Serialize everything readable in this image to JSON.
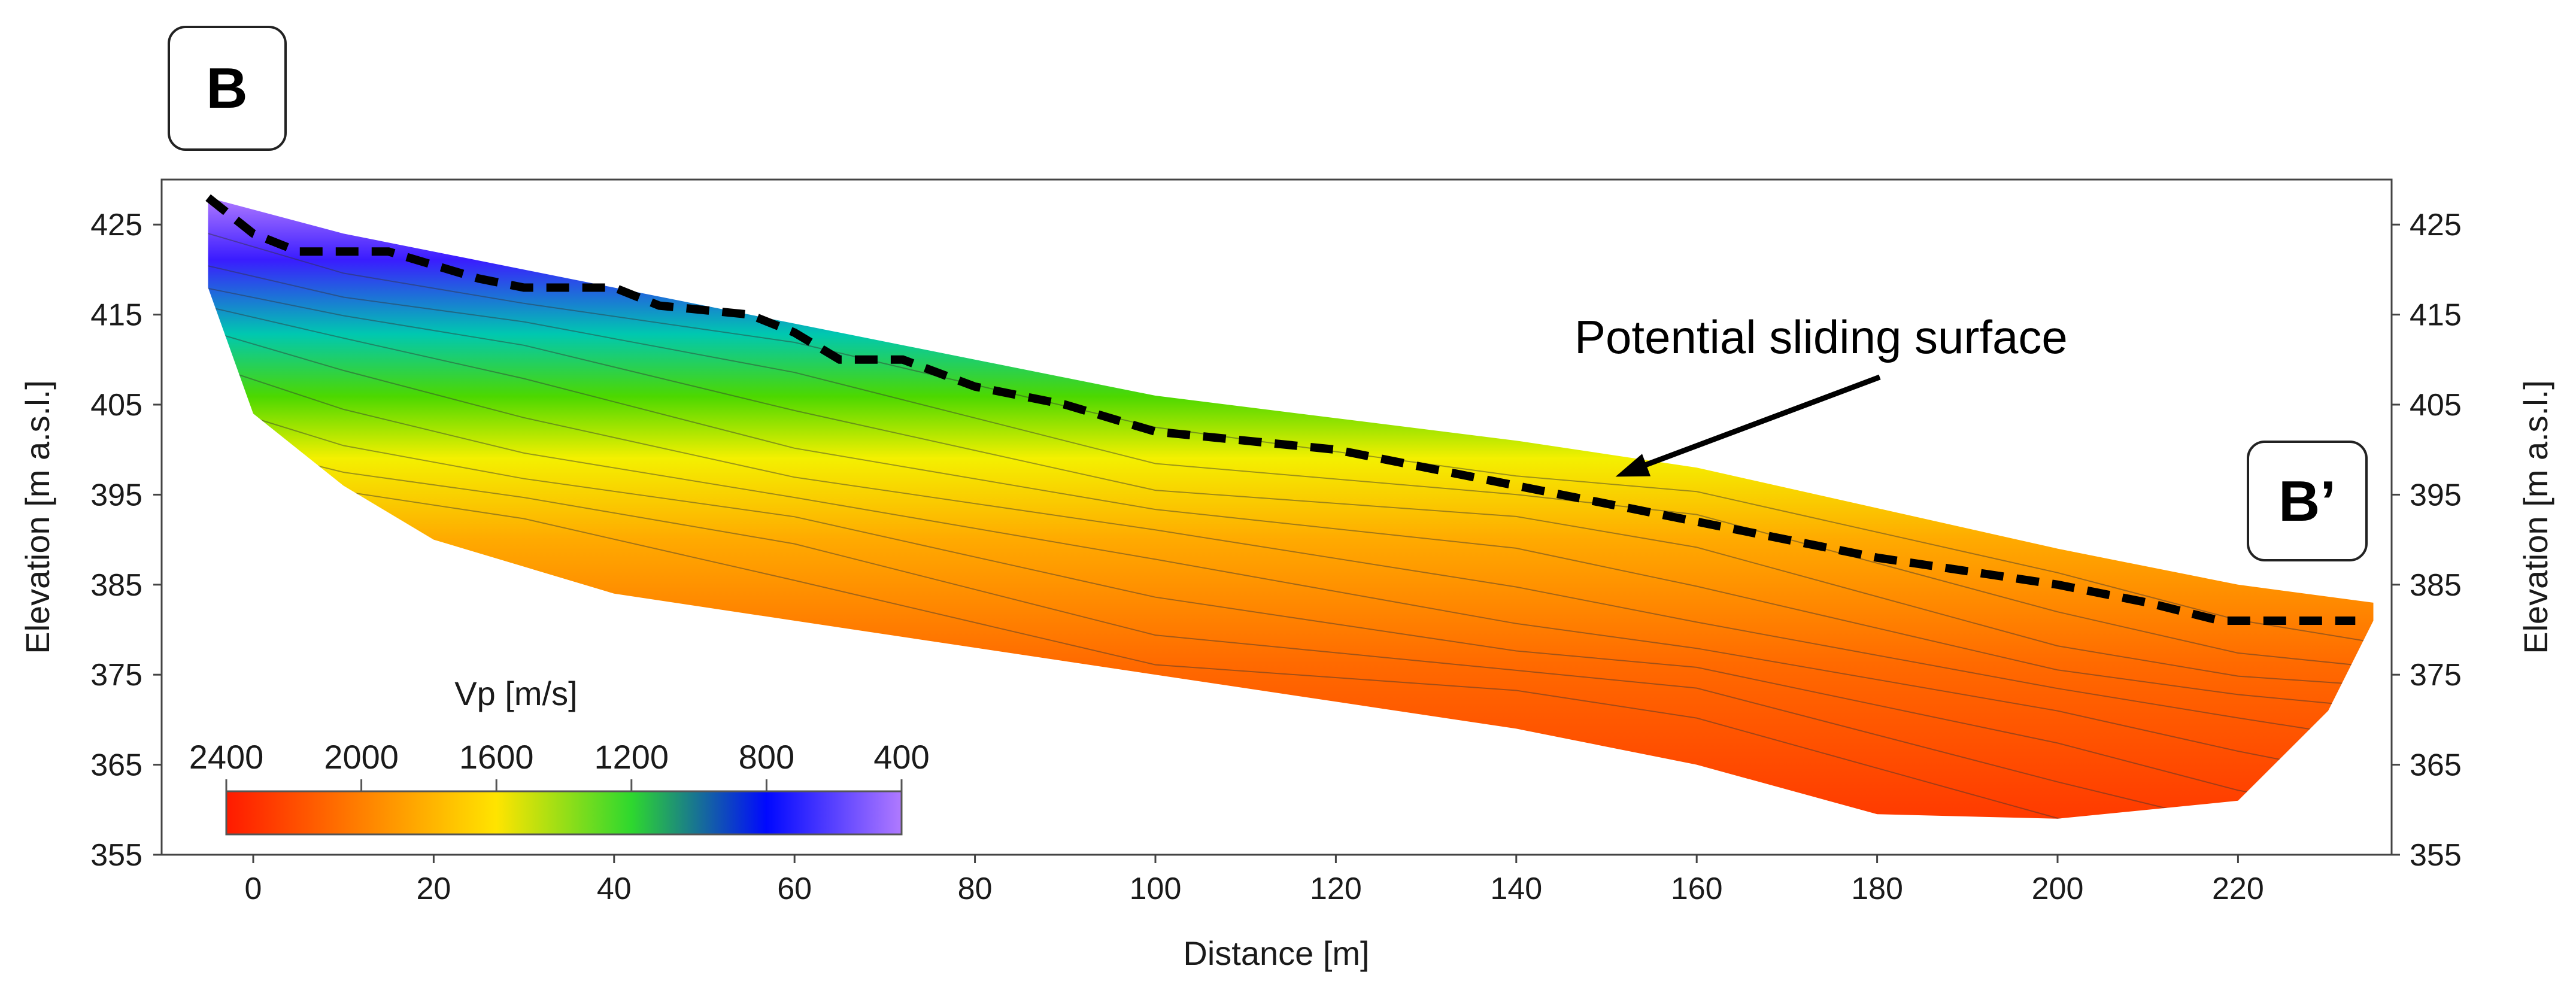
{
  "chart_data": {
    "type": "heatmap",
    "title": "",
    "xlabel": "Distance [m]",
    "ylabel_left": "Elevation [m a.s.l.]",
    "ylabel_right": "Elevation [m a.s.l.]",
    "xlim": [
      -10,
      238
    ],
    "ylim": [
      355,
      430
    ],
    "x_ticks": [
      0,
      20,
      40,
      60,
      80,
      100,
      120,
      140,
      160,
      180,
      200,
      220
    ],
    "y_ticks": [
      425,
      415,
      405,
      395,
      385,
      375,
      365,
      355
    ],
    "surface_profile": [
      {
        "x": -5,
        "y": 428
      },
      {
        "x": 10,
        "y": 424
      },
      {
        "x": 30,
        "y": 420
      },
      {
        "x": 60,
        "y": 414
      },
      {
        "x": 100,
        "y": 406
      },
      {
        "x": 140,
        "y": 401
      },
      {
        "x": 160,
        "y": 398
      },
      {
        "x": 200,
        "y": 389
      },
      {
        "x": 220,
        "y": 385
      },
      {
        "x": 235,
        "y": 383
      }
    ],
    "bottom_profile": [
      {
        "x": 235,
        "y": 381
      },
      {
        "x": 230,
        "y": 371
      },
      {
        "x": 220,
        "y": 361
      },
      {
        "x": 200,
        "y": 359
      },
      {
        "x": 180,
        "y": 359.5
      },
      {
        "x": 160,
        "y": 365
      },
      {
        "x": 140,
        "y": 369
      },
      {
        "x": 120,
        "y": 372
      },
      {
        "x": 100,
        "y": 375
      },
      {
        "x": 80,
        "y": 378
      },
      {
        "x": 60,
        "y": 381
      },
      {
        "x": 40,
        "y": 384
      },
      {
        "x": 20,
        "y": 390
      },
      {
        "x": 10,
        "y": 396
      },
      {
        "x": 0,
        "y": 404
      },
      {
        "x": -5,
        "y": 418
      },
      {
        "x": -5,
        "y": 428
      }
    ],
    "sliding_surface": [
      {
        "x": -5,
        "y": 428
      },
      {
        "x": 0,
        "y": 424
      },
      {
        "x": 5,
        "y": 422
      },
      {
        "x": 15,
        "y": 422
      },
      {
        "x": 25,
        "y": 419
      },
      {
        "x": 30,
        "y": 418
      },
      {
        "x": 40,
        "y": 418
      },
      {
        "x": 45,
        "y": 416
      },
      {
        "x": 55,
        "y": 415
      },
      {
        "x": 60,
        "y": 413
      },
      {
        "x": 65,
        "y": 410
      },
      {
        "x": 72,
        "y": 410
      },
      {
        "x": 80,
        "y": 407
      },
      {
        "x": 90,
        "y": 405
      },
      {
        "x": 100,
        "y": 402
      },
      {
        "x": 110,
        "y": 401
      },
      {
        "x": 120,
        "y": 400
      },
      {
        "x": 140,
        "y": 396
      },
      {
        "x": 160,
        "y": 392
      },
      {
        "x": 180,
        "y": 388
      },
      {
        "x": 200,
        "y": 385
      },
      {
        "x": 210,
        "y": 383
      },
      {
        "x": 218,
        "y": 381
      },
      {
        "x": 233,
        "y": 381
      }
    ],
    "annotation": {
      "text": "Potential sliding surface",
      "arrow_to": {
        "x": 151,
        "y": 397
      }
    },
    "colorbar": {
      "label": "Vp [m/s]",
      "ticks": [
        "2400",
        "2000",
        "1600",
        "1200",
        "800",
        "400"
      ],
      "stops": [
        "#ff1a00",
        "#ff7a00",
        "#ffe000",
        "#f4f400",
        "#1fd81f",
        "#00c060",
        "#0010ff",
        "#b07aff"
      ]
    },
    "legend_position": "bottom-left"
  },
  "labels": {
    "left_badge": "B",
    "right_badge": "B’"
  }
}
